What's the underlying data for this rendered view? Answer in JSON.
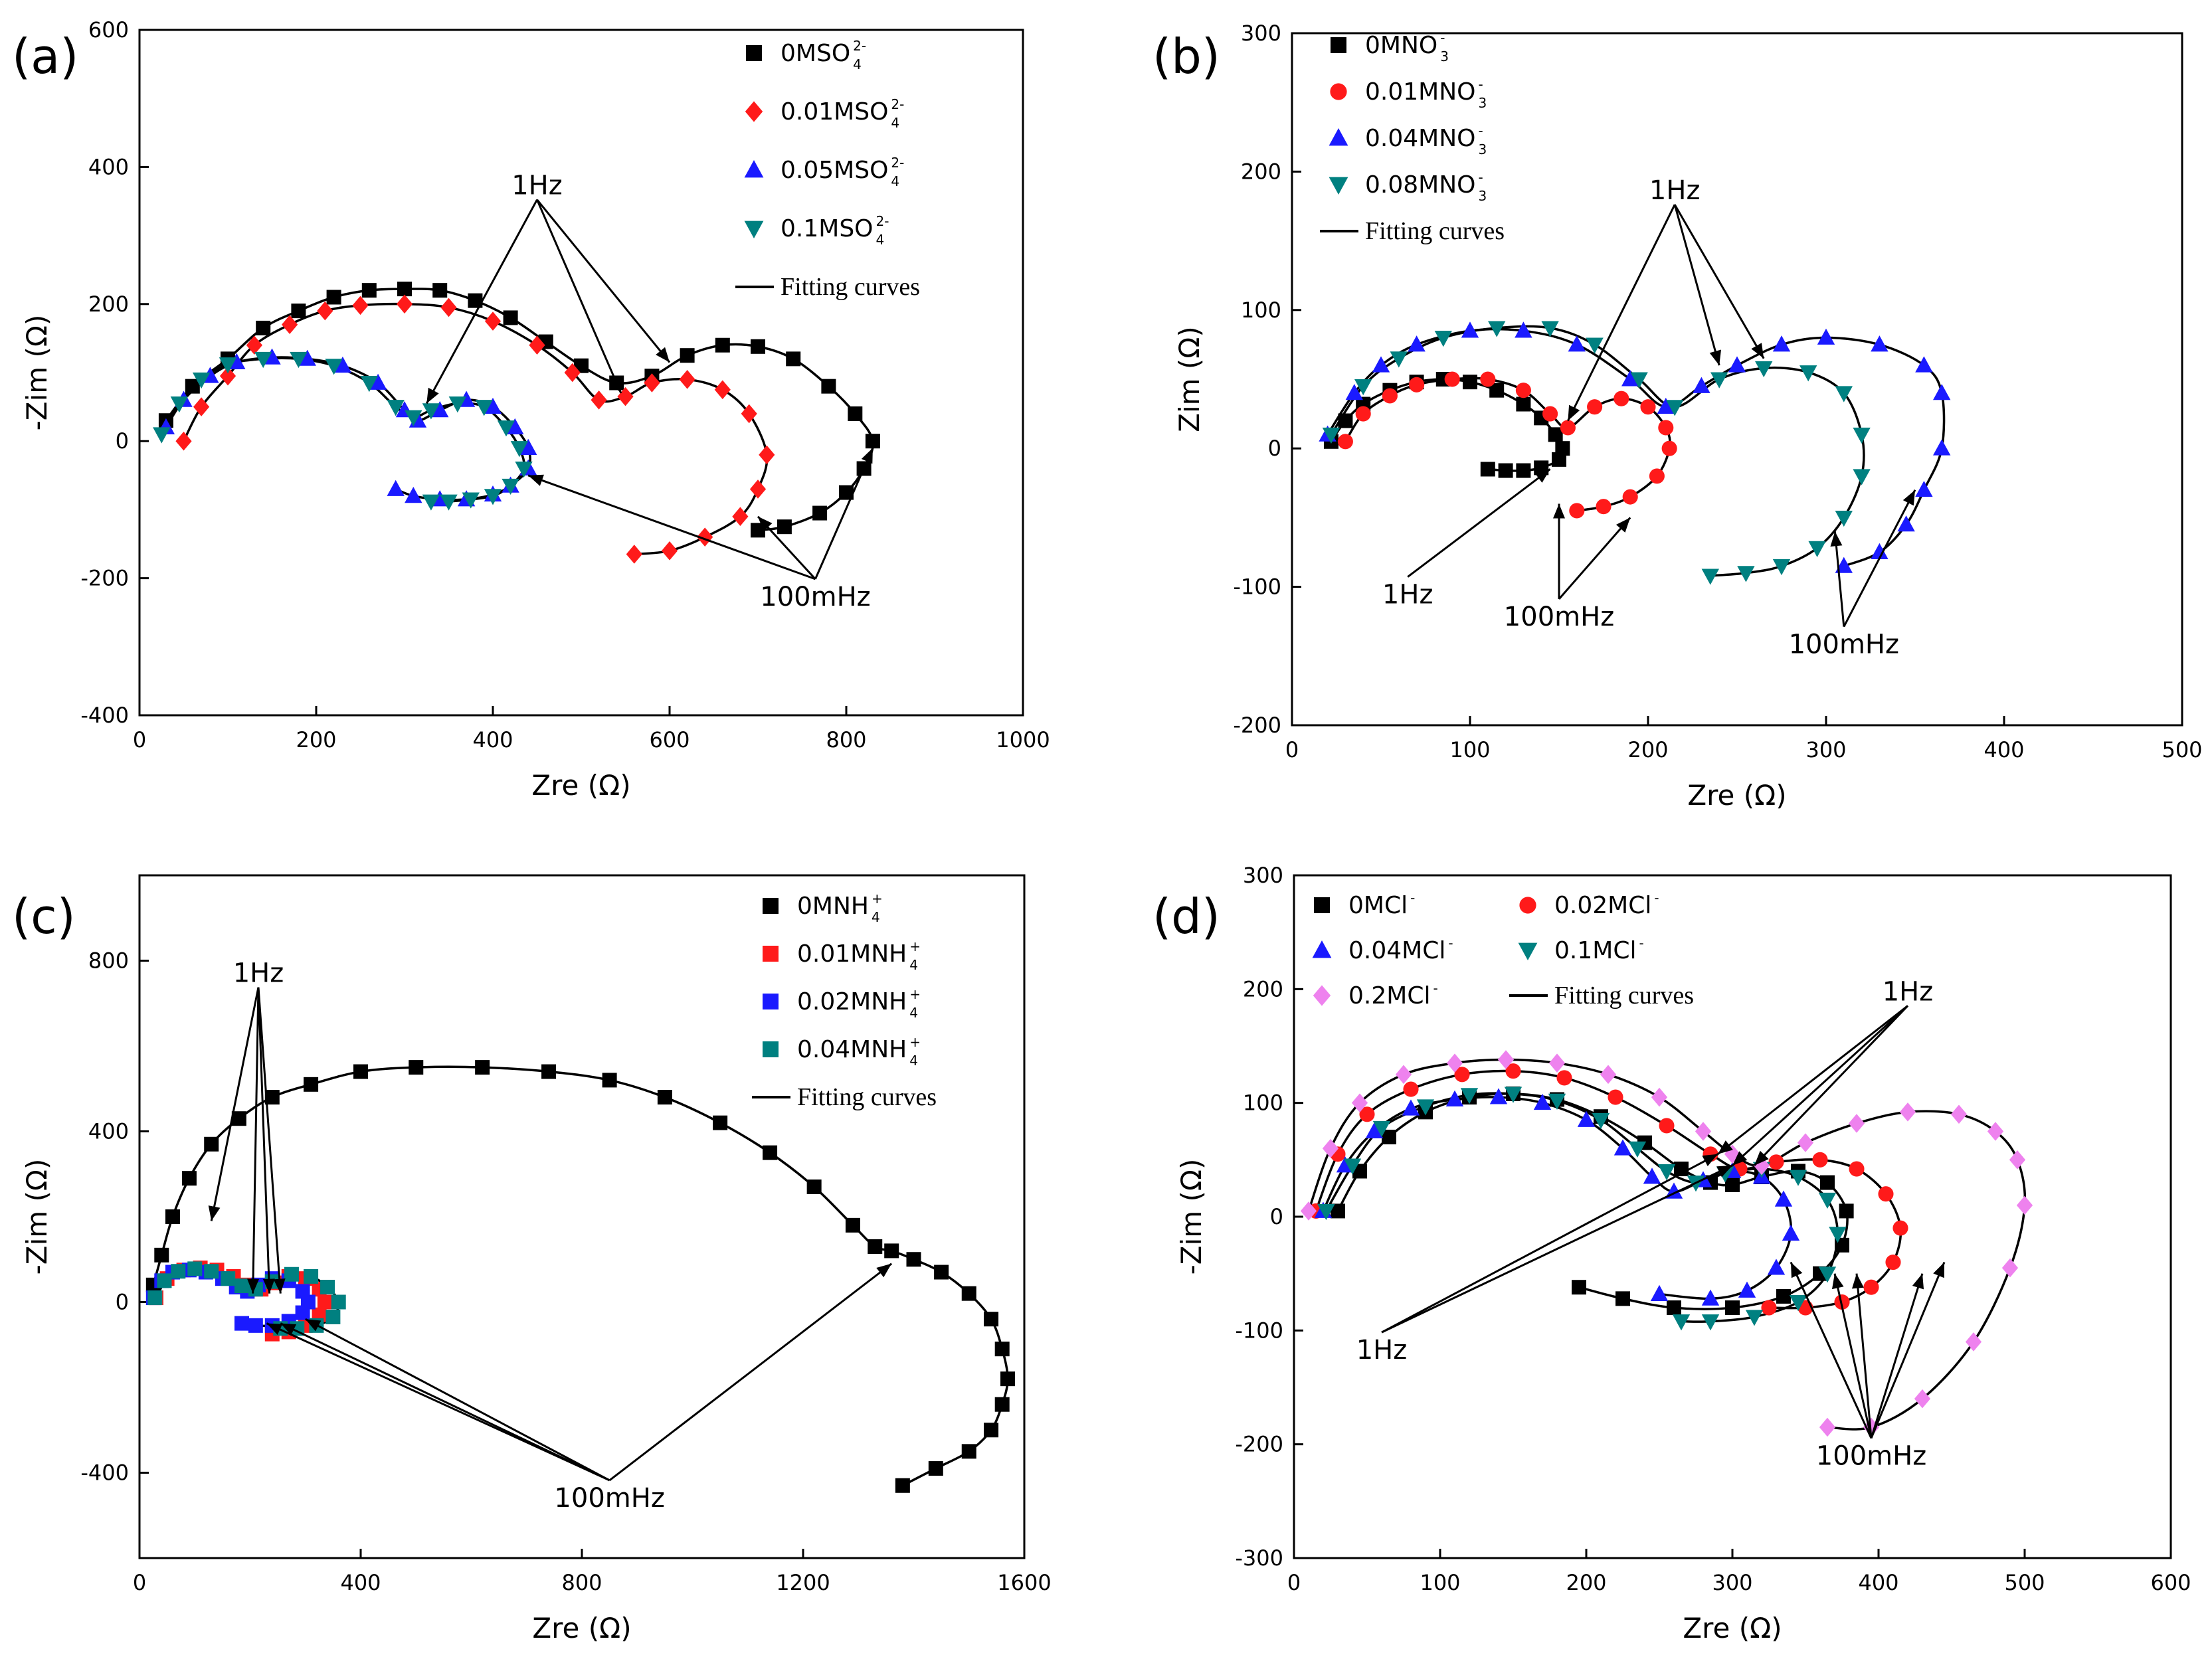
{
  "figure_labels": [
    "(a)",
    "(b)",
    "(c)",
    "(d)"
  ],
  "chart_data": [
    {
      "type": "scatter",
      "panel_label": "(a)",
      "xlabel": "Zre (Ω)",
      "ylabel": "-Zim (Ω)",
      "xlim": [
        0,
        1000
      ],
      "ylim": [
        -400,
        600
      ],
      "xticks": [
        0,
        200,
        400,
        600,
        800,
        1000
      ],
      "yticks": [
        -400,
        -200,
        0,
        200,
        400,
        600
      ],
      "legend_position": "top-right",
      "legend_columns": 1,
      "fit_label": "Fitting curves",
      "series": [
        {
          "name": "0MSO",
          "sup": "2-",
          "sub": "4",
          "color": "#000000",
          "marker": "square",
          "x": [
            30,
            60,
            100,
            140,
            180,
            220,
            260,
            300,
            340,
            380,
            420,
            460,
            500,
            540,
            580,
            620,
            660,
            700,
            740,
            780,
            810,
            830,
            820,
            800,
            770,
            730,
            700
          ],
          "y": [
            30,
            80,
            120,
            165,
            190,
            210,
            220,
            222,
            220,
            205,
            180,
            145,
            110,
            85,
            95,
            125,
            140,
            138,
            120,
            80,
            40,
            0,
            -40,
            -75,
            -105,
            -125,
            -130
          ]
        },
        {
          "name": "0.01MSO",
          "sup": "2-",
          "sub": "4",
          "color": "#ff1a1a",
          "marker": "diamond",
          "x": [
            50,
            70,
            100,
            130,
            170,
            210,
            250,
            300,
            350,
            400,
            450,
            490,
            520,
            550,
            580,
            620,
            660,
            690,
            710,
            700,
            680,
            640,
            600,
            560
          ],
          "y": [
            0,
            50,
            95,
            140,
            170,
            190,
            198,
            200,
            195,
            175,
            140,
            100,
            60,
            65,
            85,
            90,
            75,
            40,
            -20,
            -70,
            -110,
            -140,
            -160,
            -165
          ]
        },
        {
          "name": "0.05MSO",
          "sup": "2-",
          "sub": "4",
          "color": "#1a1aff",
          "marker": "triangle-up",
          "x": [
            30,
            50,
            80,
            110,
            150,
            190,
            230,
            270,
            300,
            315,
            340,
            370,
            400,
            425,
            440,
            440,
            420,
            400,
            370,
            340,
            310,
            290
          ],
          "y": [
            20,
            60,
            95,
            115,
            122,
            120,
            110,
            85,
            45,
            30,
            45,
            60,
            50,
            20,
            -10,
            -40,
            -65,
            -78,
            -85,
            -85,
            -80,
            -70
          ]
        },
        {
          "name": "0.1MSO",
          "sup": "2-",
          "sub": "4",
          "color": "#008080",
          "marker": "triangle-down",
          "x": [
            25,
            45,
            70,
            100,
            140,
            180,
            220,
            260,
            290,
            310,
            330,
            360,
            390,
            415,
            430,
            435,
            420,
            400,
            375,
            350,
            330
          ],
          "y": [
            10,
            55,
            90,
            112,
            120,
            120,
            110,
            85,
            50,
            35,
            45,
            55,
            50,
            20,
            -10,
            -40,
            -65,
            -80,
            -85,
            -88,
            -88
          ]
        }
      ],
      "annotations": [
        {
          "text": "1Hz",
          "x": 450,
          "y": 360
        },
        {
          "text": "100mHz",
          "x": 765,
          "y": -240
        }
      ]
    },
    {
      "type": "scatter",
      "panel_label": "(b)",
      "xlabel": "Zre (Ω)",
      "ylabel": "Zim (Ω)",
      "xlim": [
        0,
        500
      ],
      "ylim": [
        -200,
        300
      ],
      "xticks": [
        0,
        100,
        200,
        300,
        400,
        500
      ],
      "yticks": [
        -200,
        -100,
        0,
        100,
        200,
        300
      ],
      "legend_position": "top-left",
      "legend_columns": 1,
      "fit_label": "Fitting curves",
      "series": [
        {
          "name": "0MNO",
          "sup": "-",
          "sub": "3",
          "color": "#000000",
          "marker": "square",
          "x": [
            22,
            30,
            40,
            55,
            70,
            85,
            100,
            115,
            130,
            140,
            148,
            152,
            150,
            140,
            130,
            120,
            110
          ],
          "y": [
            5,
            20,
            32,
            42,
            48,
            50,
            48,
            42,
            32,
            22,
            10,
            0,
            -8,
            -14,
            -16,
            -16,
            -15
          ]
        },
        {
          "name": "0.01MNO",
          "sup": "-",
          "sub": "3",
          "color": "#ff1a1a",
          "marker": "circle",
          "x": [
            30,
            40,
            55,
            70,
            90,
            110,
            130,
            145,
            155,
            170,
            185,
            200,
            210,
            212,
            205,
            190,
            175,
            160
          ],
          "y": [
            5,
            25,
            38,
            46,
            50,
            50,
            42,
            25,
            15,
            30,
            36,
            30,
            15,
            0,
            -20,
            -35,
            -42,
            -45
          ]
        },
        {
          "name": "0.04MNO",
          "sup": "-",
          "sub": "3",
          "color": "#1a1aff",
          "marker": "triangle-up",
          "x": [
            20,
            35,
            50,
            70,
            100,
            130,
            160,
            190,
            210,
            230,
            250,
            275,
            300,
            330,
            355,
            365,
            365,
            355,
            345,
            330,
            310
          ],
          "y": [
            10,
            40,
            60,
            75,
            85,
            85,
            75,
            50,
            30,
            45,
            60,
            75,
            80,
            75,
            60,
            40,
            0,
            -30,
            -55,
            -75,
            -85
          ]
        },
        {
          "name": "0.08MNO",
          "sup": "-",
          "sub": "3",
          "color": "#008080",
          "marker": "triangle-down",
          "x": [
            22,
            40,
            60,
            85,
            115,
            145,
            170,
            195,
            215,
            240,
            265,
            290,
            310,
            320,
            320,
            310,
            295,
            275,
            255,
            235
          ],
          "y": [
            10,
            45,
            65,
            80,
            87,
            87,
            75,
            50,
            30,
            50,
            58,
            55,
            40,
            10,
            -20,
            -50,
            -72,
            -85,
            -90,
            -92
          ]
        }
      ],
      "annotations": [
        {
          "text": "1Hz",
          "x": 215,
          "y": 180
        },
        {
          "text": "1Hz",
          "x": 65,
          "y": -112
        },
        {
          "text": "100mHz",
          "x": 150,
          "y": -128
        },
        {
          "text": "100mHz",
          "x": 310,
          "y": -148
        }
      ]
    },
    {
      "type": "scatter",
      "panel_label": "(c)",
      "xlabel": "Zre (Ω)",
      "ylabel": "-Zim (Ω)",
      "xlim": [
        0,
        1600
      ],
      "ylim": [
        -600,
        1000
      ],
      "xticks": [
        0,
        400,
        800,
        1200,
        1600
      ],
      "yticks": [
        -400,
        0,
        400,
        800
      ],
      "legend_position": "top-right",
      "legend_columns": 1,
      "fit_label": "Fitting curves",
      "series": [
        {
          "name": "0MNH",
          "sup": "+",
          "sub": "4",
          "color": "#000000",
          "marker": "square",
          "x": [
            25,
            40,
            60,
            90,
            130,
            180,
            240,
            310,
            400,
            500,
            620,
            740,
            850,
            950,
            1050,
            1140,
            1220,
            1290,
            1330,
            1360,
            1400,
            1450,
            1500,
            1540,
            1560,
            1570,
            1560,
            1540,
            1500,
            1440,
            1380
          ],
          "y": [
            40,
            110,
            200,
            290,
            370,
            430,
            480,
            510,
            540,
            550,
            550,
            540,
            520,
            480,
            420,
            350,
            270,
            180,
            130,
            120,
            100,
            70,
            20,
            -40,
            -110,
            -180,
            -240,
            -300,
            -350,
            -390,
            -430
          ]
        },
        {
          "name": "0.01MNH",
          "sup": "+",
          "sub": "4",
          "color": "#ff1a1a",
          "marker": "square",
          "x": [
            30,
            50,
            80,
            110,
            140,
            170,
            195,
            220,
            245,
            270,
            300,
            325,
            335,
            325,
            300,
            270,
            240
          ],
          "y": [
            10,
            55,
            75,
            80,
            75,
            60,
            40,
            30,
            45,
            60,
            55,
            30,
            0,
            -30,
            -55,
            -70,
            -75
          ]
        },
        {
          "name": "0.02MNH",
          "sup": "+",
          "sub": "4",
          "color": "#1a1aff",
          "marker": "square",
          "x": [
            25,
            40,
            60,
            90,
            120,
            150,
            175,
            195,
            215,
            240,
            270,
            295,
            305,
            295,
            270,
            240,
            210,
            185
          ],
          "y": [
            10,
            50,
            70,
            75,
            70,
            55,
            35,
            25,
            40,
            55,
            50,
            25,
            0,
            -25,
            -45,
            -55,
            -55,
            -50
          ]
        },
        {
          "name": "0.04MNH",
          "sup": "+",
          "sub": "4",
          "color": "#008080",
          "marker": "square",
          "x": [
            28,
            45,
            70,
            100,
            130,
            160,
            185,
            210,
            240,
            275,
            310,
            340,
            360,
            350,
            320,
            285,
            255
          ],
          "y": [
            10,
            50,
            72,
            78,
            72,
            55,
            38,
            30,
            48,
            65,
            60,
            35,
            0,
            -35,
            -55,
            -62,
            -62
          ]
        }
      ],
      "annotations": [
        {
          "text": "1Hz",
          "x": 215,
          "y": 750
        },
        {
          "text": "100mHz",
          "x": 850,
          "y": -480
        }
      ]
    },
    {
      "type": "scatter",
      "panel_label": "(d)",
      "xlabel": "Zre (Ω)",
      "ylabel": "-Zim (Ω)",
      "xlim": [
        0,
        600
      ],
      "ylim": [
        -300,
        300
      ],
      "xticks": [
        0,
        100,
        200,
        300,
        400,
        500,
        600
      ],
      "yticks": [
        -300,
        -200,
        -100,
        0,
        100,
        200,
        300
      ],
      "legend_position": "top",
      "legend_columns": 2,
      "fit_label": "Fitting curves",
      "series": [
        {
          "name": "0MCl",
          "sup": "-",
          "sub": "",
          "color": "#000000",
          "marker": "square",
          "x": [
            30,
            45,
            65,
            90,
            120,
            150,
            180,
            210,
            240,
            265,
            285,
            300,
            320,
            345,
            365,
            378,
            375,
            360,
            335,
            300,
            260,
            225,
            195
          ],
          "y": [
            5,
            40,
            70,
            92,
            105,
            108,
            103,
            88,
            65,
            42,
            30,
            28,
            35,
            40,
            30,
            5,
            -25,
            -50,
            -70,
            -80,
            -80,
            -72,
            -62
          ]
        },
        {
          "name": "0.02MCl",
          "sup": "-",
          "sub": "",
          "color": "#ff1a1a",
          "marker": "circle",
          "x": [
            15,
            30,
            50,
            80,
            115,
            150,
            185,
            220,
            255,
            285,
            305,
            330,
            360,
            385,
            405,
            415,
            410,
            395,
            375,
            350,
            325
          ],
          "y": [
            5,
            55,
            90,
            112,
            125,
            128,
            122,
            105,
            80,
            55,
            42,
            48,
            50,
            42,
            20,
            -10,
            -40,
            -62,
            -75,
            -80,
            -80
          ]
        },
        {
          "name": "0.04MCl",
          "sup": "-",
          "sub": "",
          "color": "#1a1aff",
          "marker": "triangle-up",
          "x": [
            20,
            35,
            55,
            80,
            110,
            140,
            170,
            200,
            225,
            245,
            260,
            280,
            300,
            320,
            335,
            340,
            330,
            310,
            285,
            250
          ],
          "y": [
            5,
            45,
            75,
            95,
            103,
            105,
            100,
            85,
            60,
            35,
            22,
            32,
            40,
            35,
            15,
            -15,
            -45,
            -65,
            -72,
            -68
          ]
        },
        {
          "name": "0.1MCl",
          "sup": "-",
          "sub": "",
          "color": "#008080",
          "marker": "triangle-down",
          "x": [
            22,
            40,
            60,
            90,
            120,
            150,
            180,
            210,
            235,
            255,
            275,
            295,
            320,
            345,
            365,
            372,
            365,
            345,
            315,
            285,
            265
          ],
          "y": [
            5,
            45,
            78,
            97,
            107,
            108,
            102,
            85,
            60,
            40,
            30,
            38,
            42,
            35,
            15,
            -15,
            -50,
            -75,
            -88,
            -92,
            -92
          ]
        },
        {
          "name": "0.2MCl",
          "sup": "-",
          "sub": "",
          "color": "#ee82ee",
          "marker": "diamond",
          "x": [
            10,
            25,
            45,
            75,
            110,
            145,
            180,
            215,
            250,
            280,
            300,
            320,
            350,
            385,
            420,
            455,
            480,
            495,
            500,
            490,
            465,
            430,
            395,
            365
          ],
          "y": [
            5,
            60,
            100,
            125,
            135,
            138,
            135,
            125,
            105,
            75,
            55,
            45,
            65,
            82,
            92,
            90,
            75,
            50,
            10,
            -45,
            -110,
            -160,
            -185,
            -185
          ]
        }
      ],
      "annotations": [
        {
          "text": "1Hz",
          "x": 420,
          "y": 190
        },
        {
          "text": "1Hz",
          "x": 60,
          "y": -125
        },
        {
          "text": "100mHz",
          "x": 395,
          "y": -218
        }
      ]
    }
  ]
}
